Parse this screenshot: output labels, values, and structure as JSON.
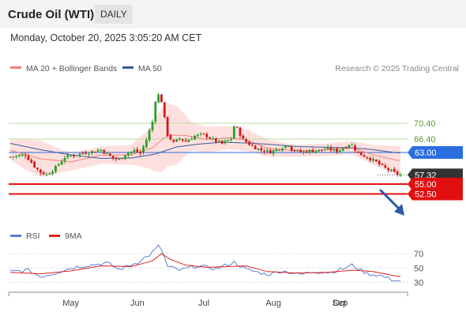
{
  "header": {
    "title": "Crude Oil (WTI)",
    "period": "DAILY",
    "datetime": "Monday, October 20, 2025 3:05:20 AM CET"
  },
  "legend": {
    "ma20": "MA 20 + Bollinger Bands",
    "ma50": "MA 50",
    "rsi": "RSI",
    "rsi_ma": "9MA"
  },
  "credit": "Research © 2025 Trading Central",
  "colors": {
    "up": "#2a9d2a",
    "down": "#d21b1b",
    "ma20": "#f08080",
    "band_fill": "#fde0de",
    "ma50": "#3a5a9a",
    "resistance": "#b8dc9c",
    "pivot": "#2a6ee0",
    "support": "#e01010",
    "current": "#333333",
    "rsi": "#5a7fd0",
    "rsi_ma": "#e02020"
  },
  "chart_data": {
    "type": "candlestick",
    "y_range": [
      51.2,
      81.6
    ],
    "x_labels": [
      "May",
      "Jun",
      "Jul",
      "Aug",
      "Sep",
      "Oct"
    ],
    "levels": [
      {
        "value": 70.4,
        "label": "70.40",
        "kind": "resistance"
      },
      {
        "value": 66.4,
        "label": "66.40",
        "kind": "resistance"
      },
      {
        "value": 63.0,
        "label": "63.00",
        "kind": "pivot"
      },
      {
        "value": 57.32,
        "label": "57.32",
        "kind": "current"
      },
      {
        "value": 55.0,
        "label": "55.00",
        "kind": "support"
      },
      {
        "value": 52.5,
        "label": "52.50",
        "kind": "support"
      }
    ],
    "anchors": [
      [
        0,
        61.9
      ],
      [
        5,
        62.4
      ],
      [
        8,
        59.5
      ],
      [
        10,
        58.0
      ],
      [
        12,
        57.4
      ],
      [
        15,
        59.2
      ],
      [
        18,
        61.8
      ],
      [
        22,
        62.5
      ],
      [
        26,
        63.1
      ],
      [
        30,
        63.7
      ],
      [
        34,
        61.5
      ],
      [
        36,
        61.2
      ],
      [
        38,
        62.6
      ],
      [
        41,
        63.5
      ],
      [
        43,
        62.8
      ],
      [
        45,
        66.2
      ],
      [
        47,
        70.8
      ],
      [
        48,
        76.2
      ],
      [
        49,
        77.5
      ],
      [
        50,
        76.0
      ],
      [
        51,
        71.5
      ],
      [
        52,
        67.5
      ],
      [
        54,
        65.4
      ],
      [
        56,
        66.6
      ],
      [
        58,
        65.8
      ],
      [
        61,
        67.2
      ],
      [
        63,
        67.5
      ],
      [
        65,
        67.2
      ],
      [
        67,
        66.2
      ],
      [
        70,
        65.2
      ],
      [
        73,
        66.5
      ],
      [
        74,
        69.6
      ],
      [
        75,
        69.0
      ],
      [
        77,
        66.2
      ],
      [
        80,
        64.6
      ],
      [
        83,
        63.6
      ],
      [
        86,
        63.2
      ],
      [
        88,
        63.7
      ],
      [
        90,
        64.4
      ],
      [
        92,
        65.0
      ],
      [
        93,
        63.8
      ],
      [
        96,
        63.1
      ],
      [
        99,
        63.4
      ],
      [
        102,
        63.5
      ],
      [
        105,
        63.9
      ],
      [
        108,
        63.4
      ],
      [
        110,
        64.1
      ],
      [
        112,
        65.1
      ],
      [
        113,
        64.8
      ],
      [
        115,
        62.8
      ],
      [
        118,
        61.8
      ],
      [
        121,
        60.6
      ],
      [
        123,
        59.4
      ],
      [
        125,
        58.6
      ],
      [
        127,
        57.8
      ],
      [
        129,
        57.3
      ]
    ],
    "ma20_anchors": [
      [
        0,
        63.6
      ],
      [
        10,
        61.4
      ],
      [
        20,
        60.6
      ],
      [
        30,
        62.3
      ],
      [
        40,
        62.4
      ],
      [
        47,
        64.2
      ],
      [
        52,
        67.4
      ],
      [
        58,
        67.3
      ],
      [
        65,
        66.3
      ],
      [
        72,
        66.7
      ],
      [
        78,
        66.2
      ],
      [
        85,
        64.1
      ],
      [
        95,
        63.4
      ],
      [
        105,
        63.7
      ],
      [
        113,
        64.2
      ],
      [
        120,
        62.4
      ],
      [
        128,
        61.0
      ]
    ],
    "band_width_anchors": [
      [
        0,
        2.5
      ],
      [
        5,
        3.8
      ],
      [
        10,
        4.6
      ],
      [
        20,
        2.2
      ],
      [
        30,
        2.2
      ],
      [
        40,
        2.5
      ],
      [
        46,
        5.0
      ],
      [
        50,
        8.2
      ],
      [
        55,
        7.5
      ],
      [
        60,
        3.5
      ],
      [
        70,
        3.0
      ],
      [
        78,
        2.8
      ],
      [
        85,
        2.2
      ],
      [
        95,
        1.5
      ],
      [
        105,
        1.6
      ],
      [
        113,
        1.7
      ],
      [
        120,
        2.5
      ],
      [
        128,
        3.6
      ]
    ],
    "ma50_anchors": [
      [
        0,
        65.3
      ],
      [
        10,
        63.7
      ],
      [
        20,
        62.4
      ],
      [
        30,
        61.5
      ],
      [
        40,
        61.6
      ],
      [
        48,
        62.6
      ],
      [
        55,
        64.4
      ],
      [
        62,
        65.1
      ],
      [
        70,
        65.6
      ],
      [
        78,
        65.4
      ],
      [
        85,
        65.1
      ],
      [
        95,
        64.5
      ],
      [
        105,
        64.3
      ],
      [
        113,
        64.2
      ],
      [
        120,
        63.7
      ],
      [
        128,
        62.9
      ]
    ],
    "rsi": {
      "y_ticks": [
        70,
        50,
        30
      ],
      "y_range": [
        25,
        80
      ],
      "line_anchors": [
        [
          0,
          45
        ],
        [
          6,
          47
        ],
        [
          10,
          38
        ],
        [
          14,
          42
        ],
        [
          20,
          50
        ],
        [
          26,
          54
        ],
        [
          32,
          57
        ],
        [
          36,
          48
        ],
        [
          42,
          58
        ],
        [
          46,
          68
        ],
        [
          49,
          80
        ],
        [
          50,
          76
        ],
        [
          52,
          52
        ],
        [
          56,
          47
        ],
        [
          62,
          53
        ],
        [
          68,
          49
        ],
        [
          74,
          58
        ],
        [
          78,
          48
        ],
        [
          85,
          41
        ],
        [
          90,
          46
        ],
        [
          96,
          41
        ],
        [
          100,
          45
        ],
        [
          106,
          44
        ],
        [
          110,
          49
        ],
        [
          113,
          54
        ],
        [
          118,
          42
        ],
        [
          122,
          40
        ],
        [
          126,
          34
        ],
        [
          129,
          32
        ]
      ],
      "ma_anchors": [
        [
          0,
          44
        ],
        [
          10,
          42
        ],
        [
          20,
          46
        ],
        [
          30,
          53
        ],
        [
          40,
          52
        ],
        [
          47,
          60
        ],
        [
          50,
          70
        ],
        [
          53,
          62
        ],
        [
          58,
          54
        ],
        [
          65,
          51
        ],
        [
          72,
          52
        ],
        [
          78,
          53
        ],
        [
          85,
          45
        ],
        [
          95,
          43
        ],
        [
          105,
          44
        ],
        [
          113,
          47
        ],
        [
          120,
          45
        ],
        [
          126,
          40
        ],
        [
          129,
          38
        ]
      ]
    }
  }
}
